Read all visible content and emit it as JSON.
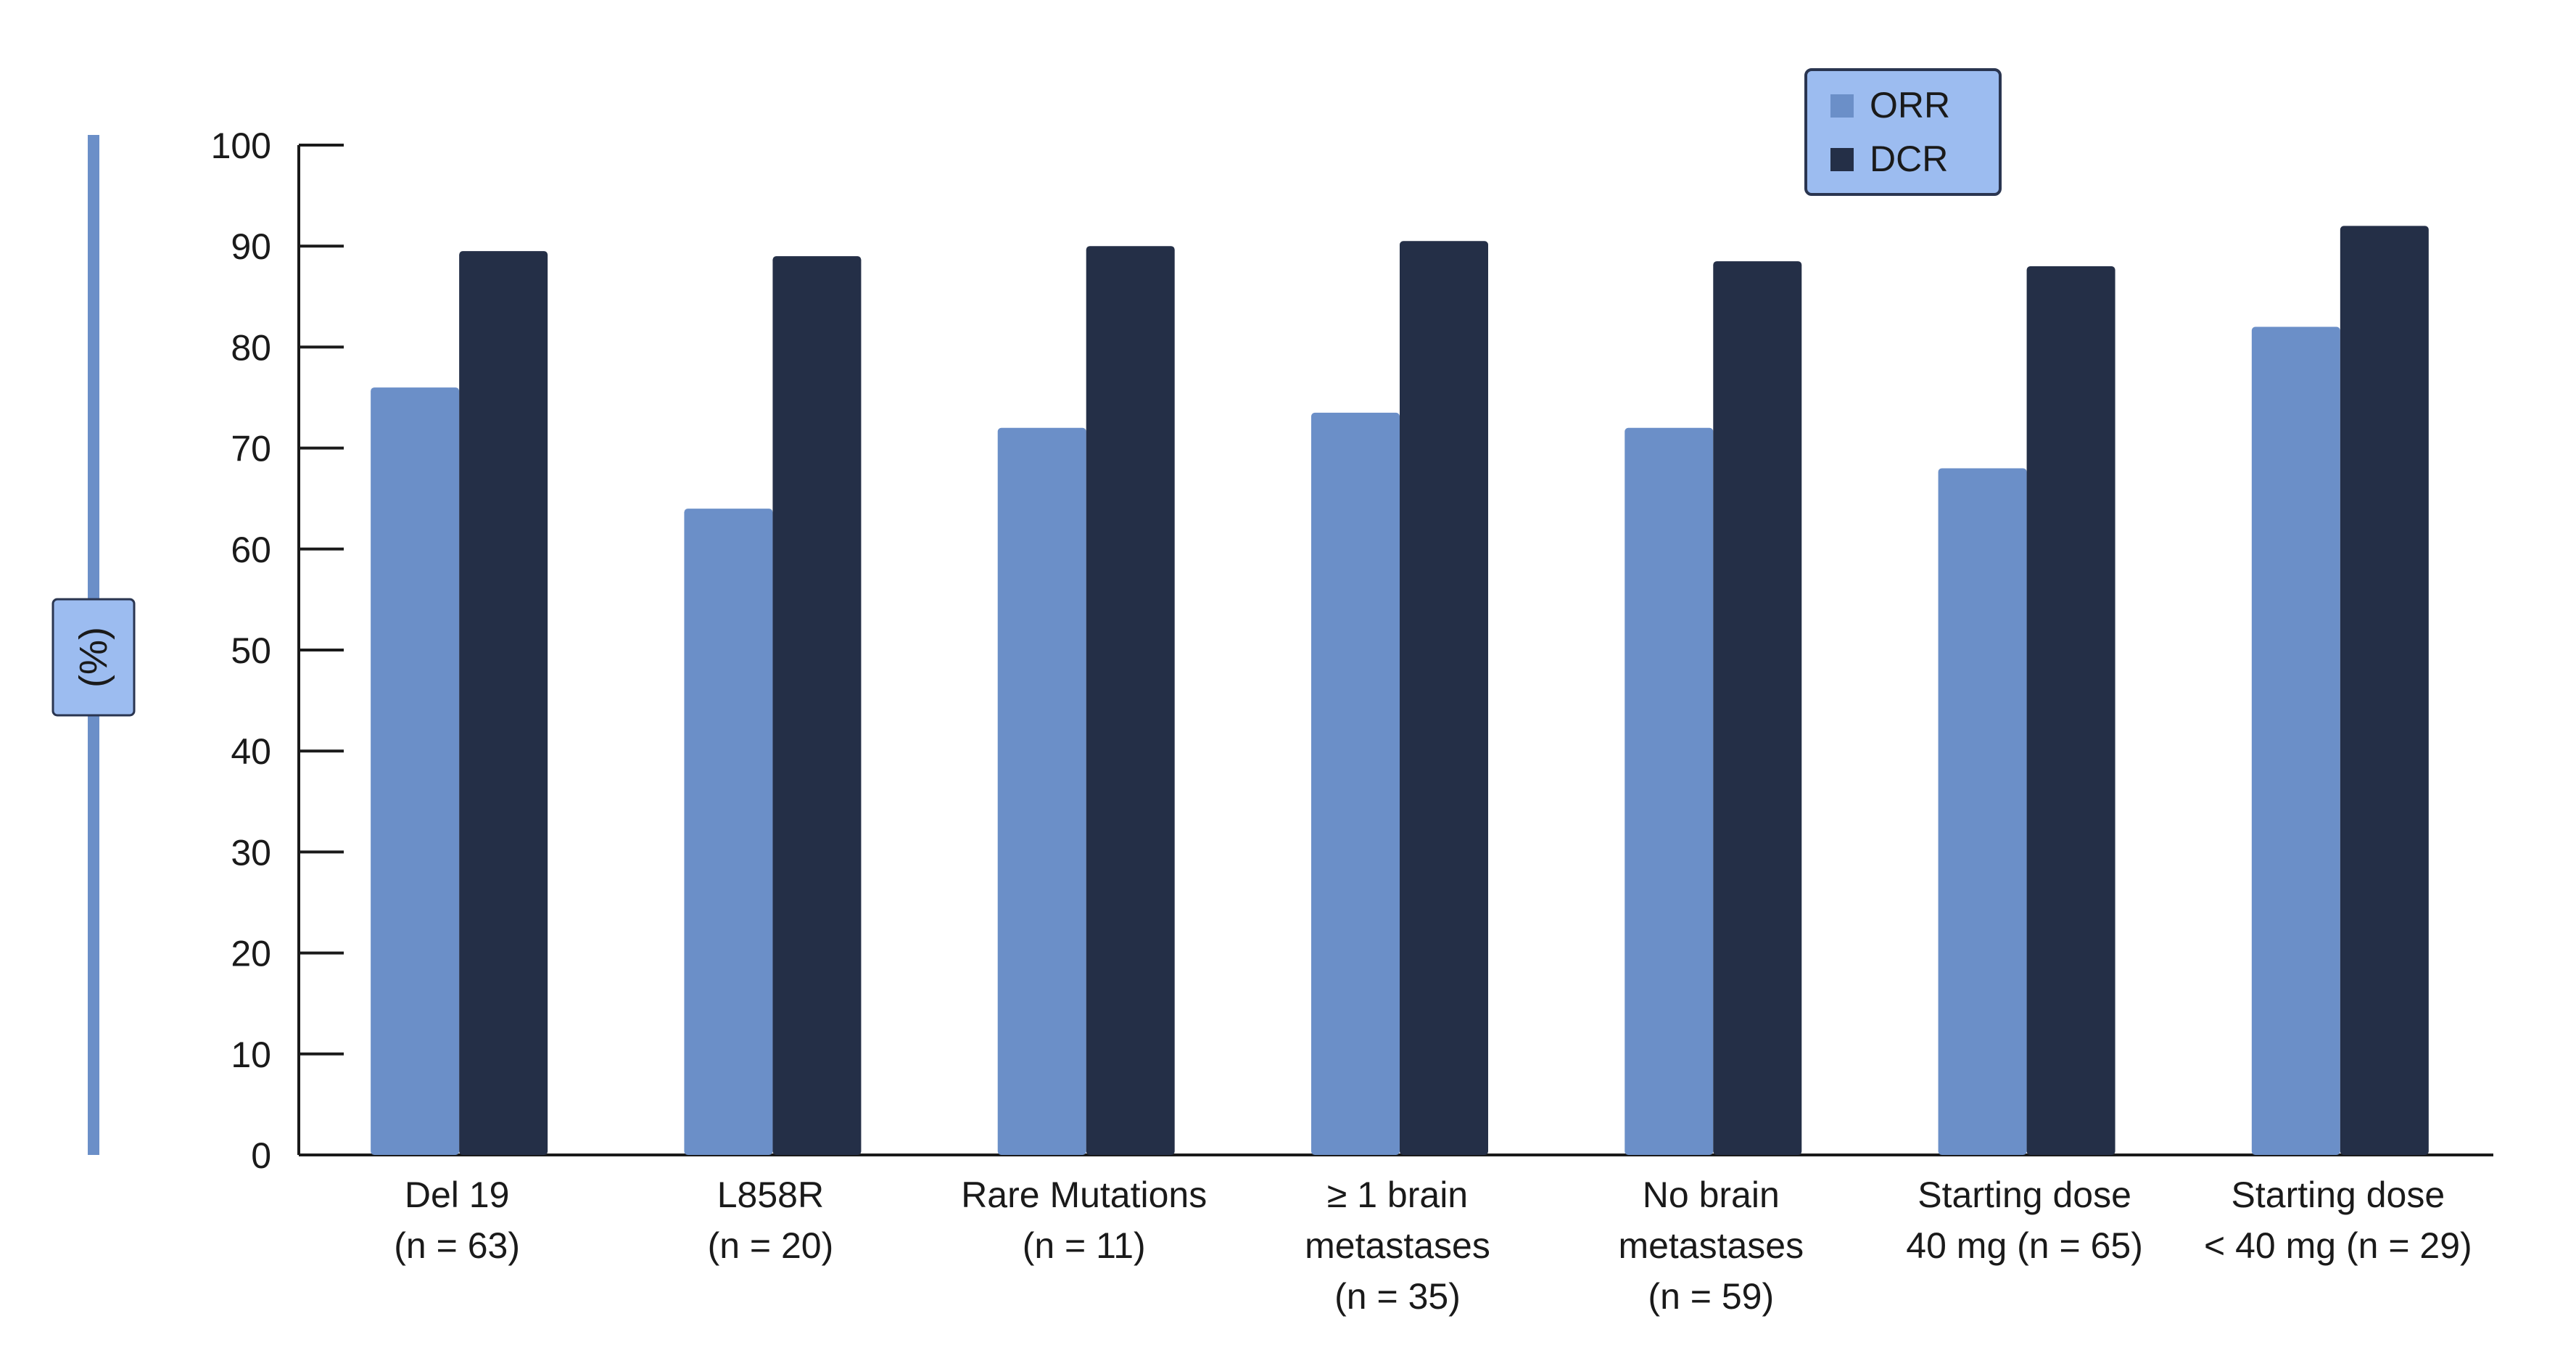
{
  "chart_data": {
    "type": "bar",
    "title": "",
    "xlabel": "",
    "ylabel": "(%)",
    "ylim": [
      0,
      100
    ],
    "yticks": [
      0,
      10,
      20,
      30,
      40,
      50,
      60,
      70,
      80,
      90,
      100
    ],
    "categories": [
      [
        "Del 19",
        "(n = 63)"
      ],
      [
        "L858R",
        "(n = 20)"
      ],
      [
        "Rare Mutations",
        "(n = 11)"
      ],
      [
        "≥ 1 brain",
        "metastases",
        "(n = 35)"
      ],
      [
        "No brain",
        "metastases",
        "(n = 59)"
      ],
      [
        "Starting dose",
        "40 mg (n = 65)"
      ],
      [
        "Starting dose",
        "< 40 mg (n = 29)"
      ]
    ],
    "series": [
      {
        "name": "ORR",
        "color": "#6b8fc8",
        "values": [
          76,
          64,
          72,
          73.5,
          72,
          68,
          82
        ]
      },
      {
        "name": "DCR",
        "color": "#242f47",
        "values": [
          89.5,
          89,
          90,
          90.5,
          88.5,
          88,
          92
        ]
      }
    ],
    "legend": {
      "position": "top-right"
    },
    "grid": false,
    "colors": {
      "axis": "#1a1a1a",
      "ylabel_bar": "#6b8fc8",
      "legend_bg": "#9cbcf0",
      "legend_border": "#2a3550"
    }
  }
}
